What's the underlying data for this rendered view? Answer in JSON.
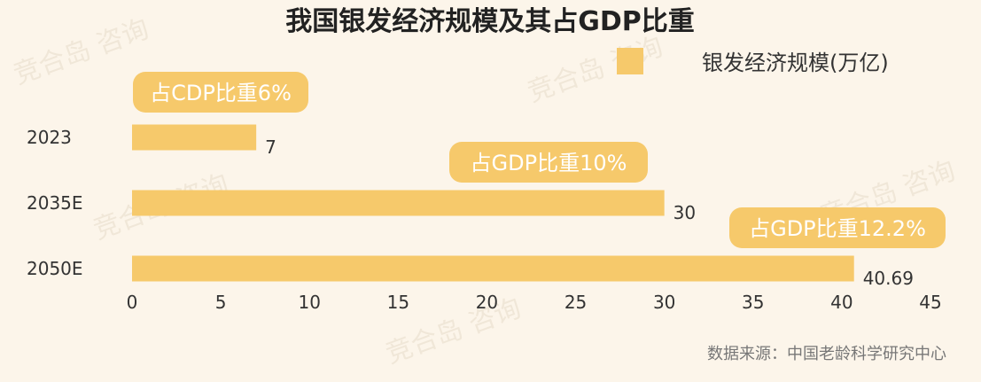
{
  "chart_data": {
    "type": "bar",
    "orientation": "horizontal",
    "title": "我国银发经济规模及其占GDP比重",
    "categories": [
      "2023",
      "2035E",
      "2050E"
    ],
    "series": [
      {
        "name": "银发经济规模(万亿)",
        "values": [
          7,
          30,
          40.69
        ]
      }
    ],
    "value_labels": [
      "7",
      "30",
      "40.69"
    ],
    "annotations": [
      "占CDP比重6%",
      "占GDP比重10%",
      "占GDP比重12.2%"
    ],
    "x_ticks": [
      "0",
      "5",
      "10",
      "15",
      "20",
      "25",
      "30",
      "35",
      "40",
      "45"
    ],
    "xlim": [
      0,
      45
    ],
    "grid": false,
    "legend_position": "top-right",
    "bar_color": "#f6c96b"
  },
  "source": "数据来源：中国老龄科学研究中心",
  "watermark": "竞合岛 咨询"
}
